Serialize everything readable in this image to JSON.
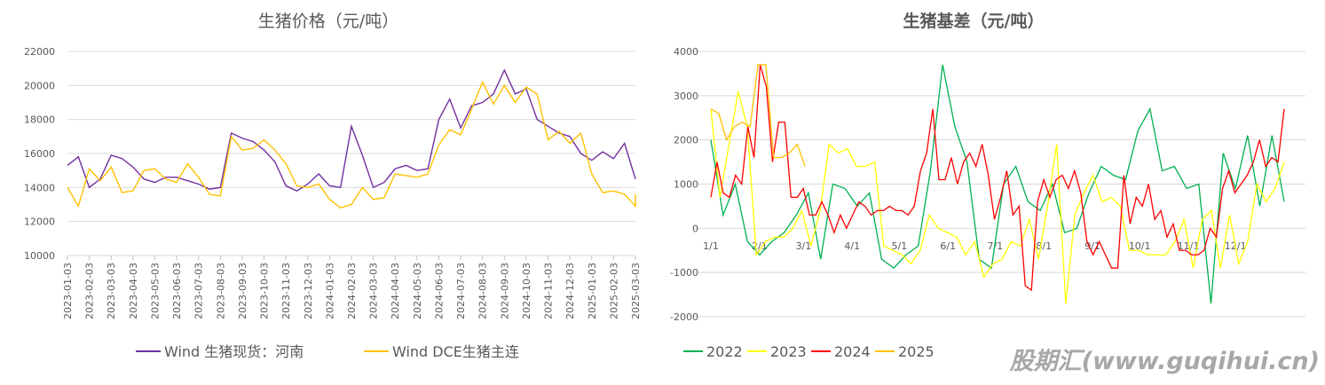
{
  "chart_data": [
    {
      "type": "line",
      "title": "生猪价格（元/吨）",
      "xlabel": "",
      "ylabel": "",
      "ylim": [
        10000,
        22000
      ],
      "yticks": [
        "10000",
        "12000",
        "14000",
        "16000",
        "18000",
        "20000",
        "22000"
      ],
      "xticks": [
        "2023-01-03",
        "2023-02-03",
        "2023-03-03",
        "2023-04-03",
        "2023-05-03",
        "2023-06-03",
        "2023-07-03",
        "2023-08-03",
        "2023-09-03",
        "2023-10-03",
        "2023-11-03",
        "2023-12-03",
        "2024-01-03",
        "2024-02-03",
        "2024-03-03",
        "2024-04-03",
        "2024-05-03",
        "2024-06-03",
        "2024-07-03",
        "2024-08-03",
        "2024-09-03",
        "2024-10-03",
        "2024-11-03",
        "2024-12-03",
        "2025-01-03",
        "2025-02-03",
        "2025-03-03"
      ],
      "legend": "bottom",
      "grid": true,
      "series": [
        {
          "name": "Wind 生猪现货：河南",
          "color": "#7030A0",
          "step": 0.5,
          "values": [
            15300,
            15800,
            14000,
            14500,
            15900,
            15700,
            15200,
            14500,
            14300,
            14600,
            14600,
            14400,
            14200,
            13900,
            14000,
            17200,
            16900,
            16700,
            16200,
            15500,
            14100,
            13800,
            14200,
            14800,
            14100,
            14000,
            17600,
            15900,
            14000,
            14300,
            15100,
            15300,
            15000,
            15100,
            18000,
            19200,
            17500,
            18800,
            19000,
            19500,
            20900,
            19500,
            19800,
            18000,
            17600,
            17200,
            17000,
            16000,
            15600,
            16100,
            15700,
            16600,
            14500
          ]
        },
        {
          "name": "Wind DCE生猪主连",
          "color": "#FFC000",
          "step": 0.5,
          "values": [
            14000,
            12900,
            15100,
            14400,
            15200,
            13700,
            13800,
            15000,
            15100,
            14500,
            14300,
            15400,
            14600,
            13600,
            13500,
            17000,
            16200,
            16300,
            16800,
            16200,
            15400,
            14100,
            14000,
            14200,
            13300,
            12800,
            13000,
            14000,
            13300,
            13400,
            14800,
            14700,
            14600,
            14800,
            16500,
            17400,
            17100,
            18600,
            20200,
            18900,
            20000,
            19000,
            19900,
            19500,
            16800,
            17300,
            16600,
            17200,
            14800,
            13700,
            13800,
            13600,
            12900,
            13600
          ]
        }
      ]
    },
    {
      "type": "line",
      "title": "生猪基差（元/吨）",
      "xlabel": "",
      "ylabel": "",
      "ylim": [
        -2000,
        4000
      ],
      "yticks": [
        "-2000",
        "-1000",
        "0",
        "1000",
        "2000",
        "3000",
        "4000"
      ],
      "xticks": [
        "1/1",
        "2/1",
        "3/1",
        "4/1",
        "5/1",
        "6/1",
        "7/1",
        "8/1",
        "9/1",
        "10/1",
        "11/1",
        "12/1"
      ],
      "xrange_days": [
        0,
        365
      ],
      "legend": "bottom",
      "grid": true,
      "series": [
        {
          "name": "2022",
          "color": "#00B050",
          "span_days": 365,
          "values": [
            2000,
            300,
            1000,
            -300,
            -600,
            -300,
            -100,
            300,
            800,
            -700,
            1000,
            900,
            500,
            800,
            -700,
            -900,
            -600,
            -400,
            1300,
            3700,
            2300,
            1500,
            -700,
            -900,
            1000,
            1400,
            600,
            400,
            1000,
            -100,
            0,
            800,
            1400,
            1200,
            1100,
            2200,
            2700,
            1300,
            1400,
            900,
            1000,
            -1700,
            1700,
            900,
            2100,
            500,
            2100,
            600
          ]
        },
        {
          "name": "2023",
          "color": "#FFFF00",
          "span_days": 365,
          "values": [
            2700,
            700,
            1900,
            3100,
            2300,
            -600,
            -300,
            -200,
            -200,
            0,
            400,
            -400,
            400,
            1900,
            1700,
            1800,
            1400,
            1400,
            1500,
            -400,
            -500,
            -600,
            -800,
            -500,
            300,
            0,
            -100,
            -200,
            -600,
            -300,
            -1100,
            -800,
            -700,
            -300,
            -400,
            200,
            -700,
            500,
            1900,
            -1700,
            300,
            800,
            1200,
            600,
            700,
            500,
            -500,
            -500,
            -600,
            -600,
            -600,
            -300,
            200,
            -900,
            200,
            400,
            -900,
            300,
            -800,
            -300,
            1000,
            600,
            900,
            1500
          ]
        },
        {
          "name": "2024",
          "color": "#FF0000",
          "span_days": 365,
          "values": [
            700,
            1500,
            800,
            700,
            1200,
            1000,
            2300,
            1600,
            3700,
            3200,
            1500,
            2400,
            2400,
            700,
            700,
            900,
            300,
            300,
            600,
            300,
            -100,
            300,
            0,
            300,
            600,
            500,
            300,
            400,
            400,
            500,
            400,
            400,
            300,
            500,
            1300,
            1700,
            2700,
            1100,
            1100,
            1600,
            1000,
            1500,
            1700,
            1400,
            1900,
            1200,
            200,
            700,
            1300,
            300,
            500,
            -1300,
            -1400,
            600,
            1100,
            700,
            1100,
            1200,
            900,
            1300,
            800,
            -300,
            -600,
            -300,
            -600,
            -900,
            -900,
            1200,
            100,
            700,
            500,
            1000,
            200,
            400,
            -200,
            100,
            -500,
            -500,
            -600,
            -600,
            -500,
            0,
            -200,
            900,
            1300,
            800,
            1000,
            1200,
            1500,
            2000,
            1400,
            1600,
            1500,
            2700
          ]
        },
        {
          "name": "2025",
          "color": "#FFC000",
          "span_days": 60,
          "values": [
            2700,
            2600,
            2000,
            2300,
            2400,
            2300,
            3700,
            3700,
            1600,
            1600,
            1700,
            1900,
            1400
          ]
        }
      ]
    }
  ],
  "watermark": "股期汇(www.guqihui.cn)"
}
